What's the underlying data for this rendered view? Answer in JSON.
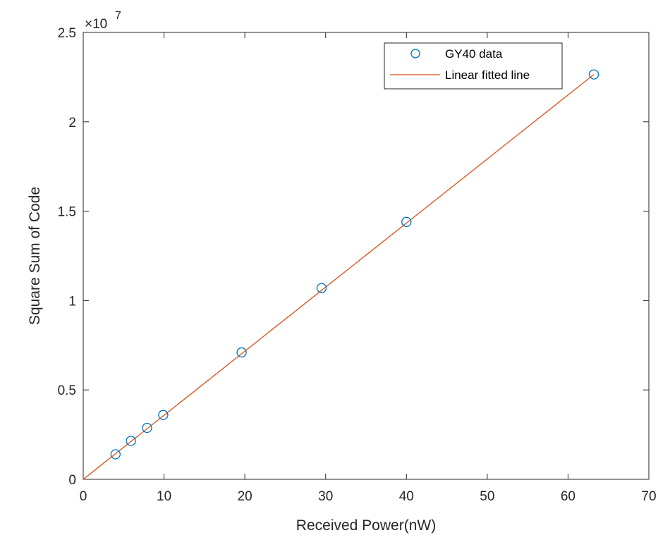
{
  "chart_data": {
    "type": "scatter",
    "title": "",
    "xlabel": "Received Power(nW)",
    "ylabel": "Square Sum of Code",
    "xlim": [
      0,
      70
    ],
    "ylim": [
      0,
      25000000
    ],
    "x_ticks": [
      0,
      10,
      20,
      30,
      40,
      50,
      60,
      70
    ],
    "y_ticks": [
      0,
      0.5,
      1,
      1.5,
      2,
      2.5
    ],
    "y_tick_labels": [
      "0",
      "0.5",
      "1",
      "1.5",
      "2",
      "2.5"
    ],
    "y_exponent_base": "×10",
    "y_exponent_power": "7",
    "grid": false,
    "legend_position": "top-right",
    "series": [
      {
        "name": "GY40 data",
        "kind": "markers",
        "marker": "circle-open",
        "color": "#0072BD",
        "x": [
          4,
          5.9,
          7.9,
          9.9,
          19.6,
          29.5,
          40,
          63.2
        ],
        "y": [
          1400000,
          2150000,
          2880000,
          3600000,
          7100000,
          10700000,
          14400000,
          22650000
        ]
      },
      {
        "name": "Linear fitted line",
        "kind": "line",
        "color": "#D95319",
        "x": [
          0,
          63.2
        ],
        "y": [
          0,
          22650000
        ]
      }
    ]
  }
}
